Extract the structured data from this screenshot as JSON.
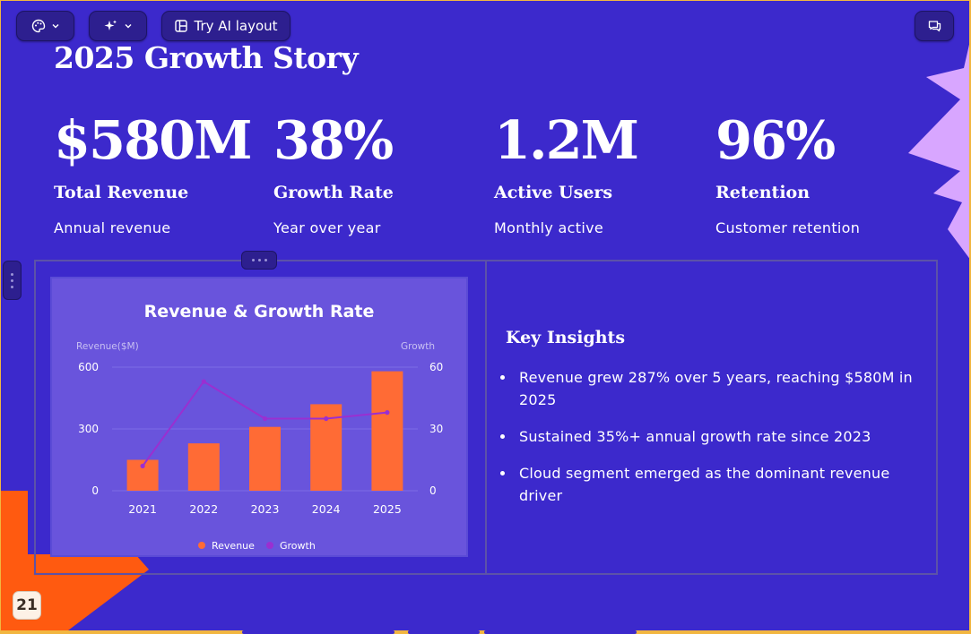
{
  "toolbar": {
    "theme_icon": "palette-icon",
    "ai_icon": "sparkles-icon",
    "layout_icon": "layout-icon",
    "try_ai_layout_label": "Try AI layout",
    "comments_icon": "comment-icon"
  },
  "slide": {
    "title": "2025 Growth Story",
    "page_number": "21",
    "stats": [
      {
        "value": "$580M",
        "label": "Total Revenue",
        "description": "Annual revenue"
      },
      {
        "value": "38%",
        "label": "Growth Rate",
        "description": "Year over year"
      },
      {
        "value": "1.2M",
        "label": "Active Users",
        "description": "Monthly active"
      },
      {
        "value": "96%",
        "label": "Retention",
        "description": "Customer retention"
      }
    ],
    "insights": {
      "title": "Key Insights",
      "items": [
        "Revenue grew 287% over 5 years, reaching $580M in 2025",
        "Sustained 35%+ annual growth rate since 2023",
        "Cloud segment emerged as the dominant revenue driver"
      ]
    }
  },
  "colors": {
    "slide_background": "#3c29cc",
    "accent_orange": "#ff6b2c",
    "accent_lilac": "#d8a6ff",
    "bar_color": "#ff6b35",
    "line_color": "#9a2fd1"
  },
  "chart_data": {
    "type": "bar",
    "title": "Revenue & Growth Rate",
    "categories": [
      "2021",
      "2022",
      "2023",
      "2024",
      "2025"
    ],
    "series": [
      {
        "name": "Revenue",
        "type": "bar",
        "axis": "left",
        "values": [
          150,
          230,
          310,
          420,
          580
        ]
      },
      {
        "name": "Growth",
        "type": "line",
        "axis": "right",
        "values": [
          12,
          53,
          35,
          35,
          38
        ]
      }
    ],
    "ylabel": "Revenue($M)",
    "y2label": "Growth",
    "ylim": [
      0,
      600
    ],
    "y2lim": [
      0,
      60
    ],
    "yticks": [
      "0",
      "300",
      "600"
    ],
    "y2ticks": [
      "0",
      "30",
      "60"
    ],
    "legend": "bottom",
    "grid": true
  }
}
